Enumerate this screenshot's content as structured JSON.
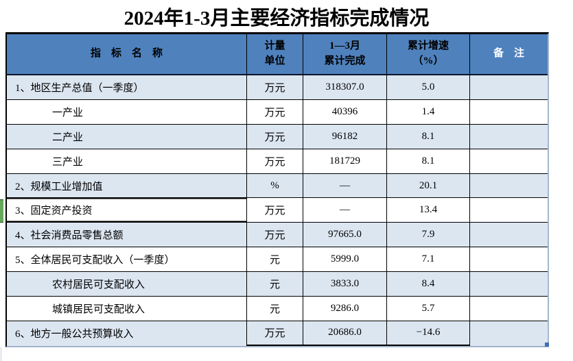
{
  "title": "2024年1-3月主要经济指标完成情况",
  "table": {
    "headers": {
      "name": "指　标　名　称",
      "unit": "计量\n单位",
      "completed": "1—3月\n累计完成",
      "growth": "累计增速\n（%）",
      "note": "备　注"
    },
    "rows": [
      {
        "name": "1、地区生产总值（一季度）",
        "unit": "万元",
        "completed": "318307.0",
        "growth": "5.0",
        "note": ""
      },
      {
        "name": "一产业",
        "unit": "万元",
        "completed": "40396",
        "growth": "1.4",
        "note": ""
      },
      {
        "name": "二产业",
        "unit": "万元",
        "completed": "96182",
        "growth": "8.1",
        "note": ""
      },
      {
        "name": "三产业",
        "unit": "万元",
        "completed": "181729",
        "growth": "8.1",
        "note": ""
      },
      {
        "name": "2、规模工业增加值",
        "unit": "%",
        "completed": "—",
        "growth": "20.1",
        "note": ""
      },
      {
        "name": "3、固定资产投资",
        "unit": "万元",
        "completed": "—",
        "growth": "13.4",
        "note": ""
      },
      {
        "name": "4、社会消费品零售总额",
        "unit": "万元",
        "completed": "97665.0",
        "growth": "7.9",
        "note": ""
      },
      {
        "name": "5、全体居民可支配收入（一季度）",
        "unit": "元",
        "completed": "5999.0",
        "growth": "7.1",
        "note": ""
      },
      {
        "name": "农村居民可支配收入",
        "unit": "元",
        "completed": "3833.0",
        "growth": "8.4",
        "note": ""
      },
      {
        "name": "城镇居民可支配收入",
        "unit": "元",
        "completed": "9286.0",
        "growth": "5.7",
        "note": ""
      },
      {
        "name": "6、地方一般公共预算收入",
        "unit": "万元",
        "completed": "20686.0",
        "growth": "−14.6",
        "note": ""
      }
    ]
  },
  "colors": {
    "header_fill": "#4f81bd",
    "band_fill": "#dce6f1",
    "grid_border": "#000000",
    "outer_soft_border": "#a3b6cc",
    "active_cell_green": "#68a85d",
    "fill_handle_blue": "#3e6fb8",
    "note_header_text": "#ffffff"
  }
}
